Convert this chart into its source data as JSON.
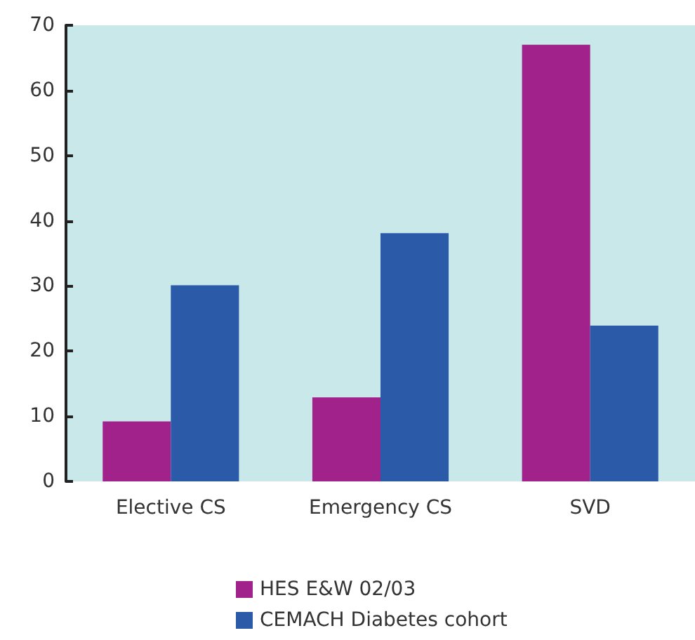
{
  "chart_data": {
    "type": "bar",
    "categories": [
      "Elective CS",
      "Emergency CS",
      "SVD"
    ],
    "series": [
      {
        "name": "HES E&W 02/03",
        "color": "#a0228a",
        "values": [
          9.2,
          12.9,
          67
        ]
      },
      {
        "name": "CEMACH Diabetes cohort",
        "color": "#2a5aa8",
        "values": [
          30.1,
          38.1,
          23.9
        ]
      }
    ],
    "ylim": [
      0,
      70
    ],
    "yticks": [
      0,
      10,
      20,
      30,
      40,
      50,
      60,
      70
    ],
    "grid": false,
    "legend": "bottom"
  }
}
